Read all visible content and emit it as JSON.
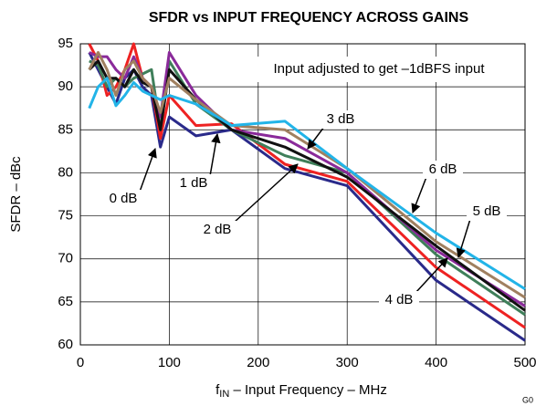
{
  "chart_data": {
    "type": "line",
    "title": "SFDR vs INPUT FREQUENCY ACROSS GAINS",
    "xlabel": "f",
    "xlabel_sub": "IN",
    "xlabel_rest": " – Input Frequency – MHz",
    "ylabel": "SFDR – dBc",
    "annotation": "Input adjusted to get –1dBFS input",
    "figure_id": "G0",
    "x": [
      10,
      20,
      30,
      40,
      50,
      60,
      70,
      80,
      90,
      100,
      130,
      170,
      230,
      300,
      400,
      500
    ],
    "series": [
      {
        "name": "0 dB",
        "color": "#2a2a8a",
        "values": [
          94,
          92,
          90,
          88,
          91,
          92,
          90,
          89,
          83,
          86.5,
          84.3,
          85,
          80.5,
          78.5,
          67.5,
          60.5
        ]
      },
      {
        "name": "1 dB",
        "color": "#ee2222",
        "values": [
          95,
          93,
          89,
          90,
          92,
          95,
          91,
          90,
          84,
          89,
          85.5,
          85.7,
          81,
          79,
          69,
          62
        ]
      },
      {
        "name": "2 dB",
        "color": "#3f7f5a",
        "values": [
          93,
          92.5,
          90,
          91,
          90,
          91,
          91.5,
          92,
          85,
          93,
          88,
          85,
          82,
          80,
          70.5,
          63.5
        ]
      },
      {
        "name": "3 dB",
        "color": "#8a2a9a",
        "values": [
          94,
          93.5,
          93.5,
          92,
          91,
          93.5,
          91,
          90,
          86.5,
          94,
          89,
          85,
          84,
          80,
          71,
          64.5
        ]
      },
      {
        "name": "4 dB",
        "color": "#111111",
        "values": [
          92,
          93,
          91,
          91,
          90,
          92,
          90.5,
          90,
          85,
          92,
          88.5,
          85,
          83,
          79.5,
          71.5,
          64
        ]
      },
      {
        "name": "5 dB",
        "color": "#a08060",
        "values": [
          92,
          94,
          92,
          89,
          92,
          93,
          91,
          90,
          87,
          91,
          88.5,
          85.5,
          85,
          80.5,
          72,
          65.5
        ]
      },
      {
        "name": "6 dB",
        "color": "#22b4e8",
        "values": [
          87.5,
          90,
          91,
          87.8,
          89,
          90.5,
          89.5,
          89,
          88.5,
          89,
          88,
          85.5,
          86,
          80.5,
          73,
          66.5
        ]
      }
    ],
    "xlim": [
      0,
      500
    ],
    "xticks": [
      0,
      100,
      200,
      300,
      400,
      500
    ],
    "ylim": [
      60,
      95
    ],
    "yticks": [
      60,
      65,
      70,
      75,
      80,
      85,
      90,
      95
    ],
    "grid": true
  }
}
